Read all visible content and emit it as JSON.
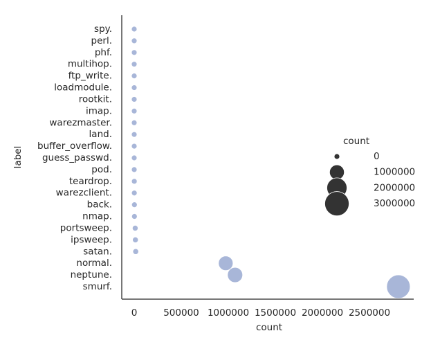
{
  "chart_data": {
    "type": "scatter",
    "xlabel": "count",
    "ylabel": "label",
    "color": "#a3b2d6",
    "categories": [
      "spy.",
      "perl.",
      "phf.",
      "multihop.",
      "ftp_write.",
      "loadmodule.",
      "rootkit.",
      "imap.",
      "warezmaster.",
      "land.",
      "buffer_overflow.",
      "guess_passwd.",
      "pod.",
      "teardrop.",
      "warezclient.",
      "back.",
      "nmap.",
      "portsweep.",
      "ipsweep.",
      "satan.",
      "normal.",
      "neptune.",
      "smurf."
    ],
    "values": [
      2,
      3,
      4,
      7,
      8,
      9,
      10,
      12,
      20,
      21,
      30,
      53,
      264,
      979,
      1020,
      2203,
      2316,
      10413,
      12481,
      15892,
      972781,
      1072017,
      2807886
    ],
    "xlim": [
      -132353,
      2970588
    ],
    "xticks": [
      0,
      500000,
      1000000,
      1500000,
      2000000,
      2500000
    ],
    "size_legend": {
      "title": "count",
      "color": "#333333",
      "values": [
        0,
        1000000,
        2000000,
        3000000
      ]
    }
  }
}
